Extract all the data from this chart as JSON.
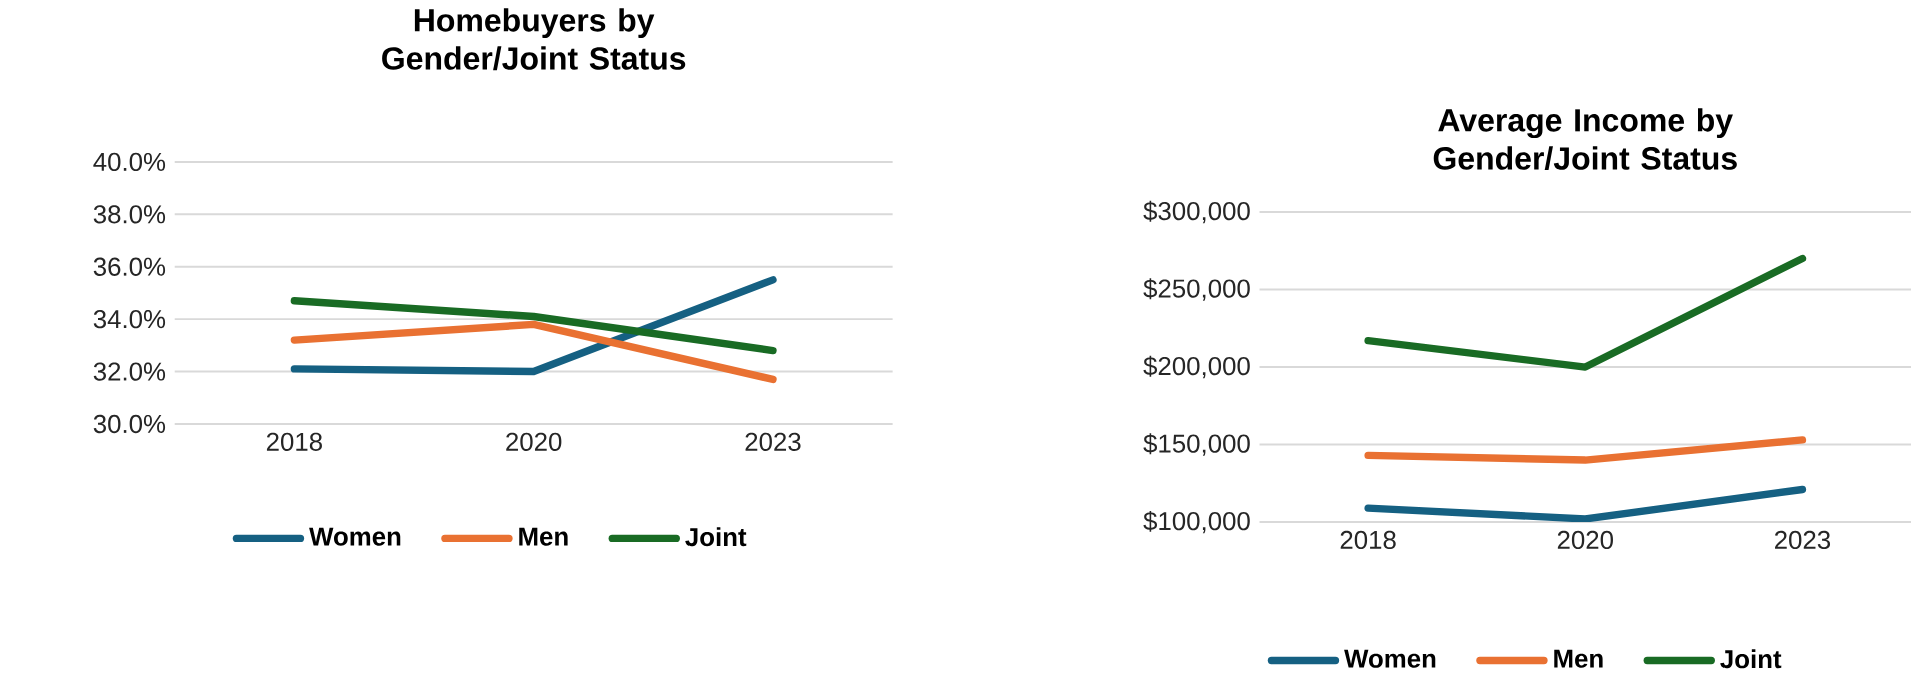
{
  "chart_data": [
    {
      "type": "line",
      "title": "Homebuyers by Gender/Joint Status",
      "categories": [
        "2018",
        "2020",
        "2023"
      ],
      "series": [
        {
          "name": "Women",
          "color": "#156082",
          "values": [
            32.1,
            32.0,
            35.5
          ]
        },
        {
          "name": "Men",
          "color": "#e97132",
          "values": [
            33.2,
            33.8,
            31.7
          ]
        },
        {
          "name": "Joint",
          "color": "#196b24",
          "values": [
            34.7,
            34.1,
            32.8
          ]
        }
      ],
      "ylim": [
        30,
        40
      ],
      "yticks": [
        {
          "value": 30,
          "label": "30.0%"
        },
        {
          "value": 32,
          "label": "32.0%"
        },
        {
          "value": 34,
          "label": "34.0%"
        },
        {
          "value": 36,
          "label": "36.0%"
        },
        {
          "value": 38,
          "label": "38.0%"
        },
        {
          "value": 40,
          "label": "40.0%"
        }
      ],
      "grid": "y",
      "legend": "bottom",
      "marker": "none",
      "line_style": "solid"
    },
    {
      "type": "line",
      "title": "Average Income by Gender/Joint Status",
      "categories": [
        "2018",
        "2020",
        "2023"
      ],
      "series": [
        {
          "name": "Women",
          "color": "#156082",
          "values": [
            109000,
            102000,
            121000
          ]
        },
        {
          "name": "Men",
          "color": "#e97132",
          "values": [
            143000,
            140000,
            153000
          ]
        },
        {
          "name": "Joint",
          "color": "#196b24",
          "values": [
            217000,
            200000,
            270000
          ]
        }
      ],
      "ylim": [
        100000,
        300000
      ],
      "yticks": [
        {
          "value": 100000,
          "label": "$100,000"
        },
        {
          "value": 150000,
          "label": "$150,000"
        },
        {
          "value": 200000,
          "label": "$200,000"
        },
        {
          "value": 250000,
          "label": "$250,000"
        },
        {
          "value": 300000,
          "label": "$300,000"
        }
      ],
      "grid": "y",
      "legend": "bottom",
      "marker": "none",
      "line_style": "solid"
    }
  ]
}
